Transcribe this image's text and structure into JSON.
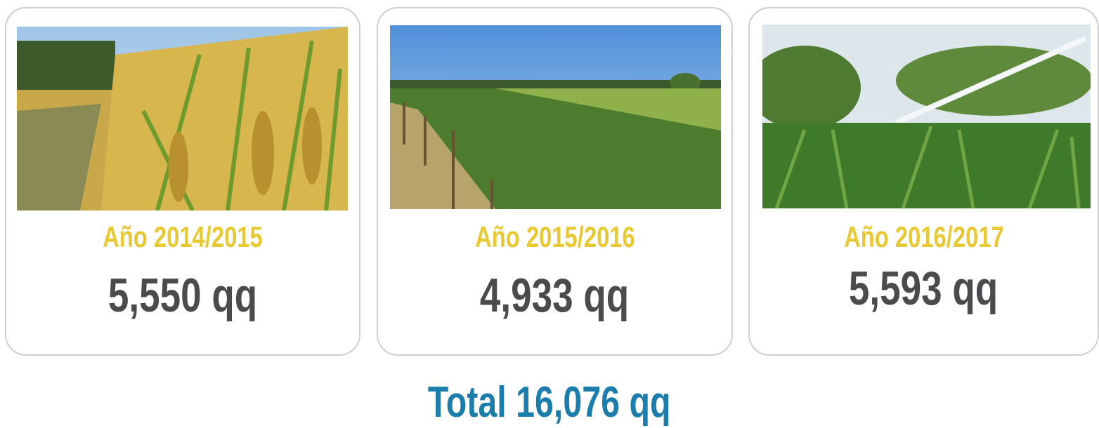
{
  "cards": [
    {
      "year": "Año 2014/2015",
      "value": "5,550 qq"
    },
    {
      "year": "Año 2015/2016",
      "value": "4,933 qq"
    },
    {
      "year": "Año 2016/2017",
      "value": "5,593 qq"
    }
  ],
  "total": "Total 16,076 qq"
}
